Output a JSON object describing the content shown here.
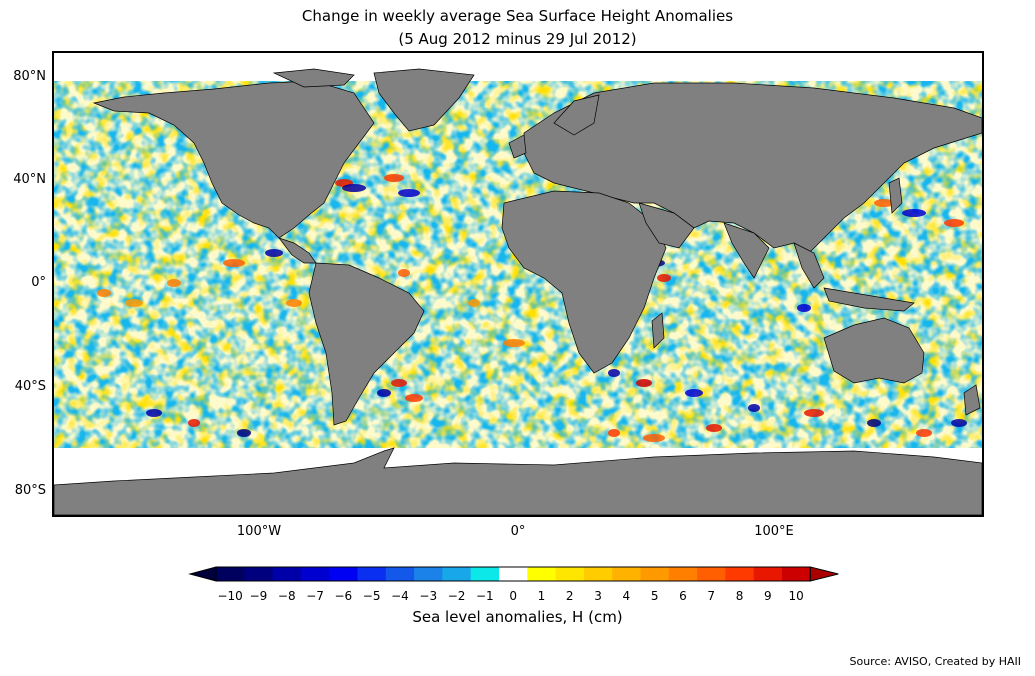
{
  "title_line1": "Change in weekly average Sea Surface Height Anomalies",
  "title_line2": "(5 Aug 2012 minus 29 Jul 2012)",
  "lat_labels": [
    "80°N",
    "40°N",
    "0°",
    "40°S",
    "80°S"
  ],
  "lon_labels": [
    "100°W",
    "0°",
    "100°E"
  ],
  "colorbar": {
    "label": "Sea level anomalies, H (cm)",
    "ticks": [
      "−10",
      "−9",
      "−8",
      "−7",
      "−6",
      "−5",
      "−4",
      "−3",
      "−2",
      "−1",
      "0",
      "1",
      "2",
      "3",
      "4",
      "5",
      "6",
      "7",
      "8",
      "9",
      "10"
    ],
    "colors": [
      "#00005e",
      "#00007f",
      "#0000a8",
      "#0000d0",
      "#0000f2",
      "#0a2ff0",
      "#1358e8",
      "#1a82e8",
      "#18a8ea",
      "#0ce8e8",
      "#ffffff",
      "#ffff00",
      "#ffe600",
      "#ffcc00",
      "#ffb300",
      "#ff9900",
      "#ff7f00",
      "#ff5f00",
      "#ff3a00",
      "#e81700",
      "#cc0000"
    ],
    "extend_low_color": "#00003a",
    "extend_high_color": "#aa0000"
  },
  "land_color": "#808080",
  "source": "Source: AVISO, Created by HAII"
}
